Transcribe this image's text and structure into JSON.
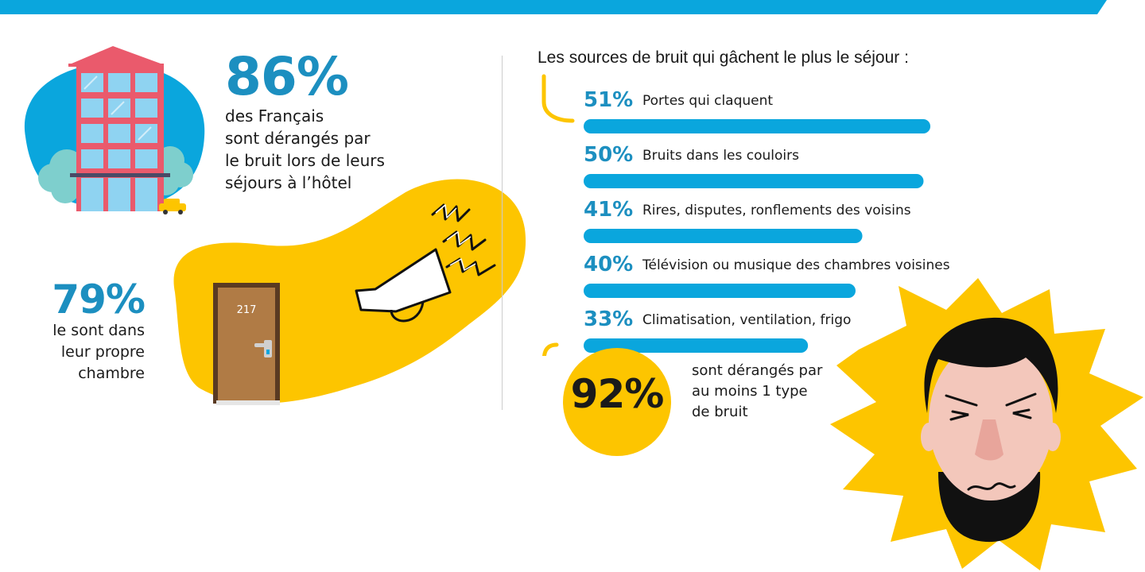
{
  "colors": {
    "blue": "#0aa6dd",
    "yellow": "#fdc500",
    "stat_blue": "#1c8fc0",
    "dark": "#1a1a1a"
  },
  "stat_86": {
    "value": "86%",
    "lines": [
      "des Français",
      "sont dérangés par",
      "le bruit lors de leurs",
      "séjours à l’hôtel"
    ]
  },
  "stat_79": {
    "value": "79%",
    "lines": [
      "le sont dans",
      "leur propre",
      "chambre"
    ]
  },
  "door": {
    "number": "217"
  },
  "stat_92": {
    "value": "92%",
    "lines": [
      "sont dérangés par",
      "au moins 1 type",
      "de bruit"
    ]
  },
  "chart_data": {
    "type": "bar",
    "orientation": "horizontal",
    "title": "Les sources de bruit qui gâchent le plus le séjour :",
    "categories": [
      "Portes qui claquent",
      "Bruits dans les couloirs",
      "Rires, disputes, ronflements des voisins",
      "Télévision ou musique des chambres voisines",
      "Climatisation, ventilation, frigo"
    ],
    "values": [
      51,
      50,
      41,
      40,
      33
    ],
    "value_labels": [
      "51%",
      "50%",
      "41%",
      "40%",
      "33%"
    ],
    "xlim": [
      0,
      100
    ],
    "grid": false,
    "legend": "none",
    "bar_color": "#0aa6dd"
  }
}
